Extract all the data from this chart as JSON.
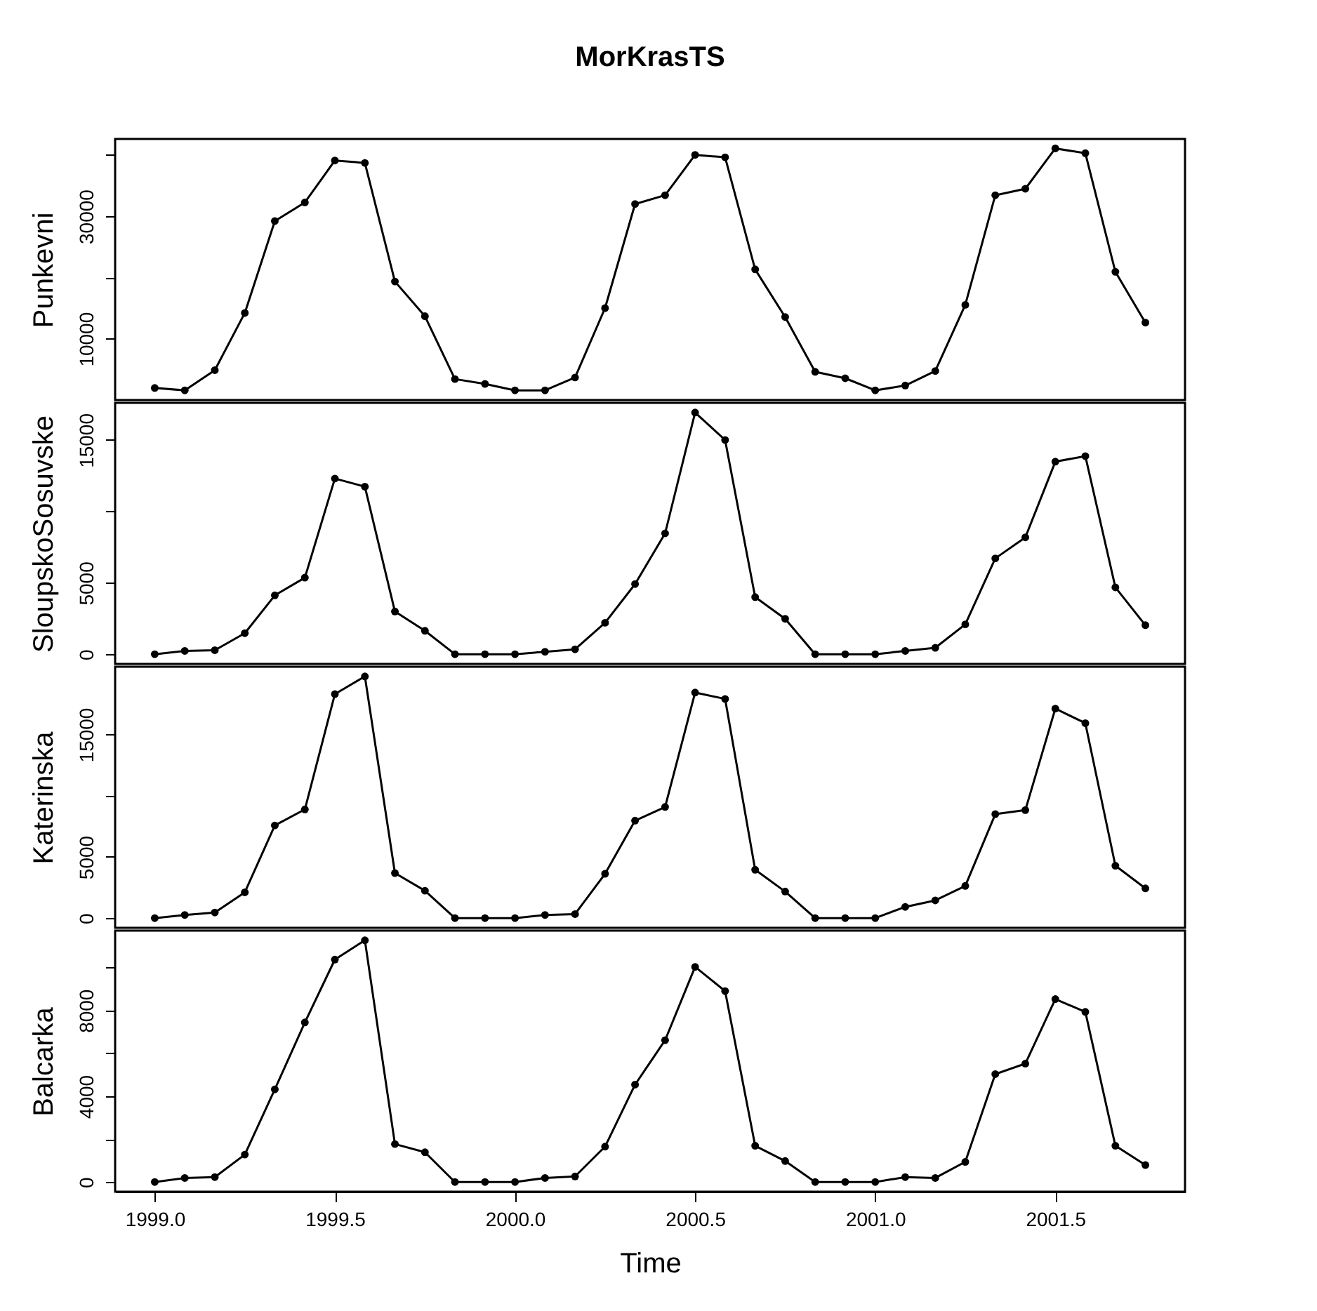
{
  "chart_data": [
    {
      "type": "line",
      "title": "MorKrasTS",
      "ylabel": "Punkevni",
      "tick_labels": "y",
      "marker": "circle",
      "color": "#000000",
      "x": [
        1999,
        1999.0833,
        1999.1667,
        1999.25,
        1999.3333,
        1999.4167,
        1999.5,
        1999.5833,
        1999.6667,
        1999.75,
        1999.8333,
        1999.9167,
        2000,
        2000.0833,
        2000.1667,
        2000.25,
        2000.3333,
        2000.4167,
        2000.5,
        2000.5833,
        2000.6667,
        2000.75,
        2000.8333,
        2000.9167,
        2001,
        2001.0833,
        2001.1667,
        2001.25,
        2001.3333,
        2001.4167,
        2001.5,
        2001.5833,
        2001.6667,
        2001.75
      ],
      "values": [
        1970,
        1580,
        4870,
        14210,
        29210,
        32240,
        39080,
        38690,
        19340,
        13680,
        3420,
        2630,
        1580,
        1580,
        3680,
        15000,
        31980,
        33420,
        40000,
        39610,
        21320,
        13550,
        4600,
        3550,
        1580,
        2370,
        4740,
        15530,
        33420,
        34470,
        41060,
        40270,
        20920,
        12630
      ],
      "xlim": [
        1998.89,
        2001.86
      ],
      "ylim": [
        0,
        42600
      ],
      "yticks": [
        10000,
        {
          "value": 20000,
          "label": null
        },
        30000,
        {
          "value": 40000,
          "label": null
        }
      ]
    },
    {
      "type": "line",
      "ylabel": "SloupskoSosuvske",
      "tick_labels": "y",
      "marker": "circle",
      "color": "#000000",
      "x": [
        1999,
        1999.0833,
        1999.1667,
        1999.25,
        1999.3333,
        1999.4167,
        1999.5,
        1999.5833,
        1999.6667,
        1999.75,
        1999.8333,
        1999.9167,
        2000,
        2000.0833,
        2000.1667,
        2000.25,
        2000.3333,
        2000.4167,
        2000.5,
        2000.5833,
        2000.6667,
        2000.75,
        2000.8333,
        2000.9167,
        2001,
        2001.0833,
        2001.1667,
        2001.25,
        2001.3333,
        2001.4167,
        2001.5,
        2001.5833,
        2001.6667,
        2001.75
      ],
      "values": [
        0,
        230,
        280,
        1470,
        4120,
        5360,
        12300,
        11730,
        2990,
        1640,
        0,
        0,
        0,
        170,
        340,
        2200,
        4910,
        8460,
        16920,
        15000,
        4000,
        2480,
        0,
        0,
        0,
        230,
        450,
        2090,
        6710,
        8180,
        13480,
        13870,
        4680,
        2030
      ],
      "xlim": [
        1998.89,
        2001.86
      ],
      "ylim": [
        -680,
        17600
      ],
      "yticks": [
        0,
        5000,
        {
          "value": 10000,
          "label": null
        },
        15000
      ]
    },
    {
      "type": "line",
      "ylabel": "Katerinska",
      "tick_labels": "y",
      "marker": "circle",
      "color": "#000000",
      "x": [
        1999,
        1999.0833,
        1999.1667,
        1999.25,
        1999.3333,
        1999.4167,
        1999.5,
        1999.5833,
        1999.6667,
        1999.75,
        1999.8333,
        1999.9167,
        2000,
        2000.0833,
        2000.1667,
        2000.25,
        2000.3333,
        2000.4167,
        2000.5,
        2000.5833,
        2000.6667,
        2000.75,
        2000.8333,
        2000.9167,
        2001,
        2001.0833,
        2001.1667,
        2001.25,
        2001.3333,
        2001.4167,
        2001.5,
        2001.5833,
        2001.6667,
        2001.75
      ],
      "values": [
        0,
        260,
        460,
        2110,
        7570,
        8880,
        18290,
        19740,
        3680,
        2240,
        0,
        0,
        0,
        260,
        330,
        3620,
        7960,
        9080,
        18420,
        17900,
        3950,
        2170,
        0,
        0,
        0,
        920,
        1450,
        2630,
        8490,
        8820,
        17110,
        15920,
        4280,
        2430
      ],
      "xlim": [
        1998.89,
        2001.86
      ],
      "ylim": [
        -790,
        20530
      ],
      "yticks": [
        0,
        5000,
        {
          "value": 10000,
          "label": null
        },
        15000
      ]
    },
    {
      "type": "line",
      "ylabel": "Balcarka",
      "xlabel": "Time",
      "marker": "circle",
      "color": "#000000",
      "x": [
        1999,
        1999.0833,
        1999.1667,
        1999.25,
        1999.3333,
        1999.4167,
        1999.5,
        1999.5833,
        1999.6667,
        1999.75,
        1999.8333,
        1999.9167,
        2000,
        2000.0833,
        2000.1667,
        2000.25,
        2000.3333,
        2000.4167,
        2000.5,
        2000.5833,
        2000.6667,
        2000.75,
        2000.8333,
        2000.9167,
        2001,
        2001.0833,
        2001.1667,
        2001.25,
        2001.3333,
        2001.4167,
        2001.5,
        2001.5833,
        2001.6667,
        2001.75
      ],
      "values": [
        0,
        190,
        230,
        1280,
        4320,
        7440,
        10370,
        11270,
        1770,
        1390,
        0,
        0,
        0,
        190,
        260,
        1650,
        4540,
        6610,
        10030,
        8900,
        1690,
        980,
        0,
        0,
        0,
        230,
        190,
        940,
        5030,
        5520,
        8530,
        7930,
        1690,
        790
      ],
      "xlim": [
        1998.89,
        2001.86
      ],
      "ylim": [
        -450,
        11720
      ],
      "xticks": [
        {
          "value": 1999,
          "label": "1999.0"
        },
        {
          "value": 1999.5,
          "label": "1999.5"
        },
        {
          "value": 2000,
          "label": "2000.0"
        },
        {
          "value": 2000.5,
          "label": "2000.5"
        },
        {
          "value": 2001,
          "label": "2001.0"
        },
        {
          "value": 2001.5,
          "label": "2001.5"
        }
      ],
      "yticks": [
        0,
        {
          "value": 2000,
          "label": null
        },
        4000,
        {
          "value": 6000,
          "label": null
        },
        8000,
        {
          "value": 10000,
          "label": null
        }
      ]
    }
  ]
}
